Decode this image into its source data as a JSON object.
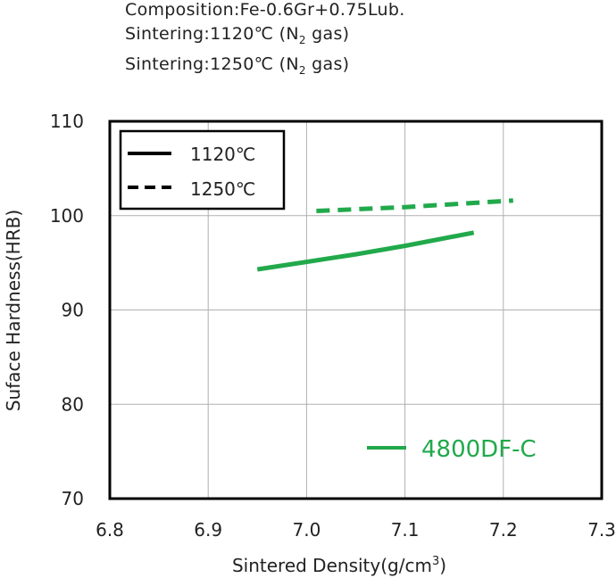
{
  "header": {
    "line1": "Composition:Fe-0.6Gr+0.75Lub.",
    "line2_prefix": "Sintering:1120℃ (N",
    "line2_sub": "2",
    "line2_suffix": " gas)",
    "line3_prefix": "Sintering:1250℃ (N",
    "line3_sub": "2",
    "line3_suffix": " gas)"
  },
  "colors": {
    "series": "#21a94b",
    "axis": "#000000",
    "grid": "#b0b0b0"
  },
  "chart_data": {
    "type": "line",
    "title": "",
    "xlabel_prefix": "Sintered Density(g/cm",
    "xlabel_sup": "3",
    "xlabel_suffix": ")",
    "ylabel": "Suface Hardness(HRB)",
    "xlim": [
      6.8,
      7.3
    ],
    "ylim": [
      70,
      110
    ],
    "xticks": [
      "6.8",
      "6.9",
      "7.0",
      "7.1",
      "7.2",
      "7.3"
    ],
    "yticks": [
      "70",
      "80",
      "90",
      "100",
      "110"
    ],
    "grid": true,
    "legend_position": "top-left",
    "legend": [
      {
        "label": "1120℃",
        "style": "solid"
      },
      {
        "label": "1250℃",
        "style": "dashed"
      }
    ],
    "series": [
      {
        "name": "1120℃",
        "style": "solid",
        "x": [
          6.95,
          7.0,
          7.05,
          7.1,
          7.17
        ],
        "y": [
          94.3,
          95.1,
          95.9,
          96.8,
          98.2
        ]
      },
      {
        "name": "1250℃",
        "style": "dashed",
        "x": [
          7.01,
          7.1,
          7.21
        ],
        "y": [
          100.5,
          100.9,
          101.6
        ]
      }
    ],
    "series_label": "4800DF-C"
  }
}
